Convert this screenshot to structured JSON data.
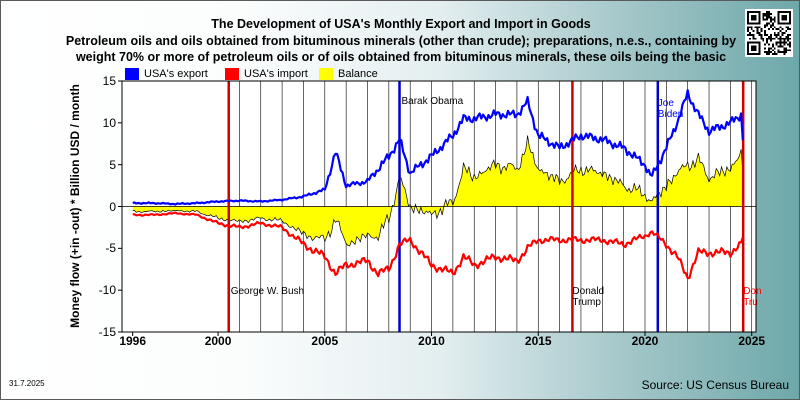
{
  "title_lines": [
    "The Development of USA's Monthly Export and Import in Goods",
    "Petroleum oils and oils obtained from bituminous minerals (other than crude); preparations, n.e.s., containing by",
    "weight 70% or more of petroleum oils or of oils obtained from bituminous minerals, these oils being the basic"
  ],
  "date_stamp": "31.7.2025",
  "source": "Source: US Census Bureau",
  "chart_data": {
    "type": "line",
    "ylabel": "Money flow (+in -out) * Billion USD / month",
    "ylim": [
      -15,
      15
    ],
    "yticks": [
      15,
      10,
      5,
      0,
      -5,
      -10,
      -15
    ],
    "xlim": [
      1995.5,
      2025.2
    ],
    "xticks": [
      1996,
      2000,
      2005,
      2010,
      2015,
      2020,
      2025
    ],
    "grid": false,
    "legend_position": "top-left, outside plot",
    "series": [
      {
        "name": "USA's export",
        "color": "#0000ff",
        "x": [
          1996.0,
          1997.0,
          1998.0,
          1999.0,
          2000.0,
          2001.0,
          2002.0,
          2003.0,
          2004.0,
          2005.0,
          2005.5,
          2006.0,
          2007.0,
          2007.5,
          2008.0,
          2008.5,
          2009.0,
          2010.0,
          2011.0,
          2011.5,
          2012.0,
          2013.0,
          2014.0,
          2014.5,
          2015.0,
          2016.0,
          2017.0,
          2018.0,
          2019.0,
          2020.0,
          2020.3,
          2021.0,
          2021.5,
          2022.0,
          2022.5,
          2023.0,
          2024.0,
          2024.5,
          2024.6
        ],
        "values": [
          0.4,
          0.4,
          0.3,
          0.4,
          0.6,
          0.7,
          0.6,
          0.8,
          1.2,
          2.0,
          6.5,
          2.5,
          3.0,
          4.5,
          6.0,
          8.0,
          4.0,
          6.0,
          8.5,
          10.5,
          10.5,
          11.0,
          11.0,
          12.5,
          8.5,
          7.0,
          8.5,
          8.0,
          7.0,
          5.0,
          3.5,
          7.0,
          10.0,
          13.5,
          11.0,
          9.0,
          10.0,
          11.0,
          7.5
        ]
      },
      {
        "name": "USA's import",
        "color": "#ff0000",
        "x": [
          1996.0,
          1997.0,
          1998.0,
          1999.0,
          2000.0,
          2001.0,
          2002.0,
          2003.0,
          2004.0,
          2005.0,
          2005.5,
          2006.0,
          2007.0,
          2007.5,
          2008.0,
          2008.5,
          2009.0,
          2010.0,
          2011.0,
          2011.5,
          2012.0,
          2013.0,
          2014.0,
          2014.5,
          2015.0,
          2016.0,
          2017.0,
          2018.0,
          2019.0,
          2020.0,
          2020.3,
          2021.0,
          2021.5,
          2022.0,
          2022.5,
          2023.0,
          2024.0,
          2024.5,
          2024.6
        ],
        "values": [
          -1.0,
          -1.0,
          -0.8,
          -1.0,
          -2.0,
          -2.5,
          -2.0,
          -2.5,
          -4.5,
          -6.0,
          -8.0,
          -7.0,
          -6.5,
          -8.0,
          -7.5,
          -4.5,
          -4.0,
          -7.0,
          -8.0,
          -6.0,
          -7.0,
          -6.0,
          -6.5,
          -5.0,
          -4.0,
          -4.0,
          -4.0,
          -4.0,
          -4.5,
          -3.5,
          -3.0,
          -4.5,
          -6.0,
          -8.5,
          -5.5,
          -5.5,
          -5.5,
          -4.5,
          -3.5
        ]
      }
    ],
    "balance": {
      "name": "Balance",
      "color": "#ffff00",
      "outline": "#000000"
    },
    "events": [
      {
        "x": 2000.5,
        "label": "George W. Bush",
        "color": "#d00000"
      },
      {
        "x": 2008.5,
        "label": "Barak Obama",
        "color": "#0000cc"
      },
      {
        "x": 2016.6,
        "label": "Donald\nTrump",
        "color": "#d00000"
      },
      {
        "x": 2020.6,
        "label": "Joe\nBiden",
        "color": "#0000cc"
      },
      {
        "x": 2024.6,
        "label": "Don\nTru",
        "color": "#d00000"
      }
    ],
    "year_gridlines": [
      2001,
      2002,
      2003,
      2004,
      2005,
      2006,
      2007,
      2008,
      2009,
      2010,
      2011,
      2012,
      2013,
      2014,
      2015,
      2016,
      2017,
      2018,
      2019,
      2020,
      2021,
      2022,
      2023,
      2024,
      2025
    ]
  }
}
